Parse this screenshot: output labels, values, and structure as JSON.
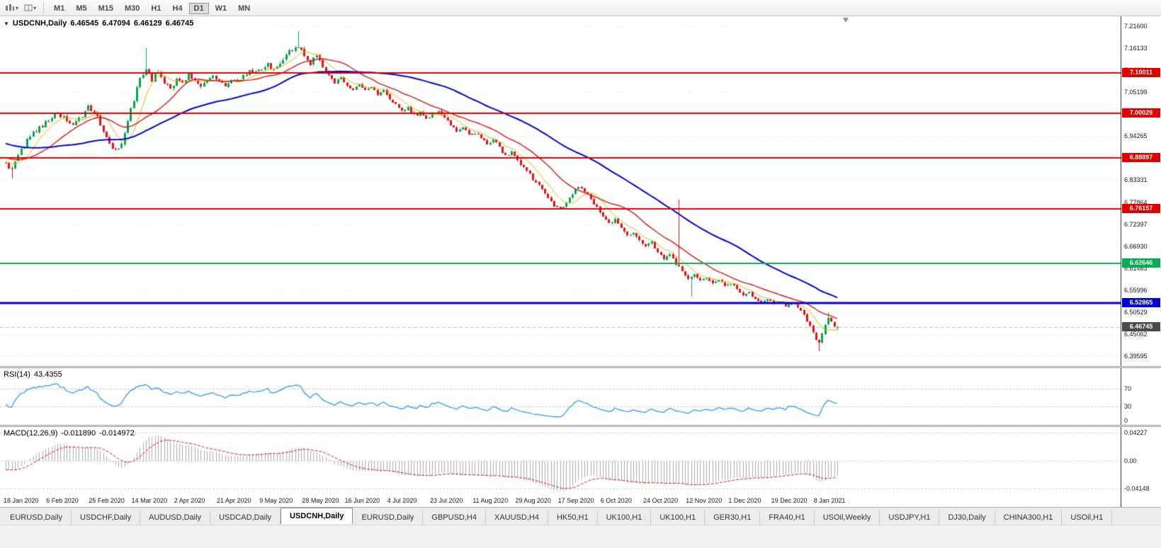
{
  "toolbar": {
    "timeframes": [
      {
        "label": "M1",
        "active": false
      },
      {
        "label": "M5",
        "active": false
      },
      {
        "label": "M15",
        "active": false
      },
      {
        "label": "M30",
        "active": false
      },
      {
        "label": "H1",
        "active": false
      },
      {
        "label": "H4",
        "active": false
      },
      {
        "label": "D1",
        "active": true
      },
      {
        "label": "W1",
        "active": false
      },
      {
        "label": "MN",
        "active": false
      }
    ]
  },
  "chart_header": {
    "symbol": "USDCNH,Daily",
    "open": "6.46545",
    "high": "6.47094",
    "low": "6.46129",
    "close": "6.46745"
  },
  "price_axis": {
    "ticks": [
      "7.21600",
      "7.16133",
      "7.10666",
      "7.05199",
      "6.99732",
      "6.94265",
      "6.88798",
      "6.83331",
      "6.77864",
      "6.72397",
      "6.66930",
      "6.61463",
      "6.55996",
      "6.50529",
      "6.45062",
      "6.39595"
    ]
  },
  "chart_data": {
    "type": "candlestick",
    "symbol": "USDCNH",
    "period": "Daily",
    "ylim": [
      6.39595,
      7.216
    ],
    "candle_count": 274,
    "up_color": "#00A651",
    "down_color": "#E81010",
    "x_labels": [
      "18 Jan 2020",
      "6 Feb 2020",
      "25 Feb 2020",
      "14 Mar 2020",
      "2 Apr 2020",
      "21 Apr 2020",
      "9 May 2020",
      "28 May 2020",
      "16 Jun 2020",
      "4 Jul 2020",
      "23 Jul 2020",
      "11 Aug 2020",
      "29 Aug 2020",
      "17 Sep 2020",
      "6 Oct 2020",
      "24 Oct 2020",
      "12 Nov 2020",
      "1 Dec 2020",
      "19 Dec 2020",
      "8 Jan 2021"
    ],
    "x_label_indices": [
      0,
      14,
      28,
      42,
      56,
      70,
      84,
      98,
      112,
      126,
      140,
      154,
      168,
      182,
      196,
      210,
      224,
      238,
      252,
      266
    ],
    "close_anchors": [
      [
        0,
        6.873
      ],
      [
        2,
        6.858
      ],
      [
        4,
        6.893
      ],
      [
        7,
        6.932
      ],
      [
        10,
        6.958
      ],
      [
        13,
        6.976
      ],
      [
        16,
        6.997
      ],
      [
        19,
        6.989
      ],
      [
        22,
        6.973
      ],
      [
        25,
        6.995
      ],
      [
        27,
        7.018
      ],
      [
        30,
        6.993
      ],
      [
        33,
        6.936
      ],
      [
        36,
        6.905
      ],
      [
        38,
        6.922
      ],
      [
        40,
        6.984
      ],
      [
        42,
        7.034
      ],
      [
        44,
        7.088
      ],
      [
        46,
        7.112
      ],
      [
        48,
        7.083
      ],
      [
        50,
        7.103
      ],
      [
        52,
        7.078
      ],
      [
        54,
        7.056
      ],
      [
        56,
        7.088
      ],
      [
        58,
        7.074
      ],
      [
        60,
        7.094
      ],
      [
        62,
        7.079
      ],
      [
        64,
        7.061
      ],
      [
        66,
        7.08
      ],
      [
        68,
        7.094
      ],
      [
        70,
        7.081
      ],
      [
        72,
        7.067
      ],
      [
        74,
        7.086
      ],
      [
        76,
        7.076
      ],
      [
        78,
        7.093
      ],
      [
        80,
        7.106
      ],
      [
        82,
        7.098
      ],
      [
        84,
        7.113
      ],
      [
        86,
        7.123
      ],
      [
        88,
        7.106
      ],
      [
        90,
        7.128
      ],
      [
        92,
        7.145
      ],
      [
        94,
        7.158
      ],
      [
        96,
        7.168
      ],
      [
        98,
        7.143
      ],
      [
        100,
        7.126
      ],
      [
        102,
        7.148
      ],
      [
        104,
        7.118
      ],
      [
        106,
        7.094
      ],
      [
        108,
        7.076
      ],
      [
        110,
        7.086
      ],
      [
        112,
        7.068
      ],
      [
        114,
        7.06
      ],
      [
        116,
        7.073
      ],
      [
        118,
        7.056
      ],
      [
        120,
        7.066
      ],
      [
        122,
        7.046
      ],
      [
        124,
        7.056
      ],
      [
        126,
        7.036
      ],
      [
        128,
        7.02
      ],
      [
        130,
        7.004
      ],
      [
        132,
        7.014
      ],
      [
        134,
        6.994
      ],
      [
        136,
        7.0
      ],
      [
        138,
        6.984
      ],
      [
        140,
        6.997
      ],
      [
        142,
        7.006
      ],
      [
        144,
        6.988
      ],
      [
        146,
        6.97
      ],
      [
        148,
        6.958
      ],
      [
        150,
        6.966
      ],
      [
        152,
        6.948
      ],
      [
        154,
        6.953
      ],
      [
        156,
        6.94
      ],
      [
        158,
        6.926
      ],
      [
        160,
        6.933
      ],
      [
        162,
        6.913
      ],
      [
        164,
        6.896
      ],
      [
        166,
        6.903
      ],
      [
        168,
        6.88
      ],
      [
        170,
        6.866
      ],
      [
        172,
        6.846
      ],
      [
        174,
        6.826
      ],
      [
        176,
        6.81
      ],
      [
        178,
        6.788
      ],
      [
        180,
        6.77
      ],
      [
        182,
        6.76
      ],
      [
        184,
        6.78
      ],
      [
        186,
        6.8
      ],
      [
        188,
        6.816
      ],
      [
        190,
        6.806
      ],
      [
        192,
        6.786
      ],
      [
        194,
        6.766
      ],
      [
        196,
        6.746
      ],
      [
        198,
        6.728
      ],
      [
        200,
        6.735
      ],
      [
        202,
        6.714
      ],
      [
        204,
        6.694
      ],
      [
        206,
        6.704
      ],
      [
        208,
        6.682
      ],
      [
        210,
        6.668
      ],
      [
        212,
        6.678
      ],
      [
        214,
        6.654
      ],
      [
        216,
        6.637
      ],
      [
        218,
        6.647
      ],
      [
        220,
        6.625
      ],
      [
        222,
        6.607
      ],
      [
        224,
        6.588
      ],
      [
        226,
        6.597
      ],
      [
        228,
        6.584
      ],
      [
        230,
        6.591
      ],
      [
        232,
        6.577
      ],
      [
        234,
        6.584
      ],
      [
        236,
        6.571
      ],
      [
        238,
        6.577
      ],
      [
        240,
        6.561
      ],
      [
        242,
        6.547
      ],
      [
        244,
        6.554
      ],
      [
        246,
        6.539
      ],
      [
        248,
        6.531
      ],
      [
        250,
        6.539
      ],
      [
        252,
        6.528
      ],
      [
        254,
        6.534
      ],
      [
        256,
        6.521
      ],
      [
        258,
        6.527
      ],
      [
        260,
        6.518
      ],
      [
        262,
        6.497
      ],
      [
        264,
        6.472
      ],
      [
        265,
        6.452
      ],
      [
        266,
        6.438
      ],
      [
        267,
        6.428
      ],
      [
        268,
        6.452
      ],
      [
        269,
        6.472
      ],
      [
        270,
        6.49
      ],
      [
        271,
        6.481
      ],
      [
        272,
        6.47
      ],
      [
        273,
        6.46745
      ]
    ],
    "wick_overrides": [
      {
        "index": 2,
        "low": 6.838
      },
      {
        "index": 46,
        "high": 7.161
      },
      {
        "index": 96,
        "high": 7.204
      },
      {
        "index": 221,
        "high": 6.785
      },
      {
        "index": 225,
        "low": 6.543
      },
      {
        "index": 267,
        "low": 6.408
      },
      {
        "index": 270,
        "high": 6.505
      }
    ],
    "last_candle": {
      "open": 6.46545,
      "high": 6.47094,
      "low": 6.46129,
      "close": 6.46745
    },
    "moving_averages": [
      {
        "period": 8,
        "color": "#D8B400"
      },
      {
        "period": 20,
        "color": "#E01010"
      },
      {
        "period": 55,
        "color": "#0000E0"
      }
    ],
    "horizontal_levels": [
      {
        "price": 7.10011,
        "label": "7.10011",
        "color": "#E00000"
      },
      {
        "price": 7.00029,
        "label": "7.00029",
        "color": "#E00000"
      },
      {
        "price": 6.88897,
        "label": "6.88897",
        "color": "#E00000"
      },
      {
        "price": 6.76157,
        "label": "6.76157",
        "color": "#E00000"
      },
      {
        "price": 6.62646,
        "label": "6.62646",
        "color": "#00B050"
      },
      {
        "price": 6.52865,
        "label": "6.52865",
        "color": "#0000D4"
      }
    ],
    "current_price": {
      "value": 6.46745,
      "label": "6.46745",
      "color": "#4a4a4a"
    },
    "indicators": {
      "rsi": {
        "name": "RSI(14)",
        "current": "43.4355",
        "color": "#1E90FF",
        "levels": [
          {
            "value": 70,
            "label": "70"
          },
          {
            "value": 30,
            "label": "30"
          },
          {
            "value": 0,
            "label": "0"
          }
        ]
      },
      "macd": {
        "name": "MACD(12,26,9)",
        "current_macd": "-0.011890",
        "current_signal": "-0.014972",
        "histogram_color": "#ABABAB",
        "signal_color": "#E01010",
        "axis_labels": [
          {
            "value": 0.04227,
            "label": "0.04227"
          },
          {
            "value": 0,
            "label": "0.00"
          },
          {
            "value": -0.04148,
            "label": "-0.04148"
          }
        ]
      }
    }
  },
  "bottom_tabs": [
    {
      "label": "EURUSD,Daily",
      "active": false
    },
    {
      "label": "USDCHF,Daily",
      "active": false
    },
    {
      "label": "AUDUSD,Daily",
      "active": false
    },
    {
      "label": "USDCAD,Daily",
      "active": false
    },
    {
      "label": "USDCNH,Daily",
      "active": true
    },
    {
      "label": "EURUSD,Daily",
      "active": false
    },
    {
      "label": "GBPUSD,H4",
      "active": false
    },
    {
      "label": "XAUUSD,H4",
      "active": false
    },
    {
      "label": "HK50,H1",
      "active": false
    },
    {
      "label": "UK100,H1",
      "active": false
    },
    {
      "label": "UK100,H1",
      "active": false
    },
    {
      "label": "GER30,H1",
      "active": false
    },
    {
      "label": "FRA40,H1",
      "active": false
    },
    {
      "label": "USOil,Weekly",
      "active": false
    },
    {
      "label": "USDJPY,H1",
      "active": false
    },
    {
      "label": "DJ30,Daily",
      "active": false
    },
    {
      "label": "CHINA300,H1",
      "active": false
    },
    {
      "label": "USOil,H1",
      "active": false
    }
  ]
}
